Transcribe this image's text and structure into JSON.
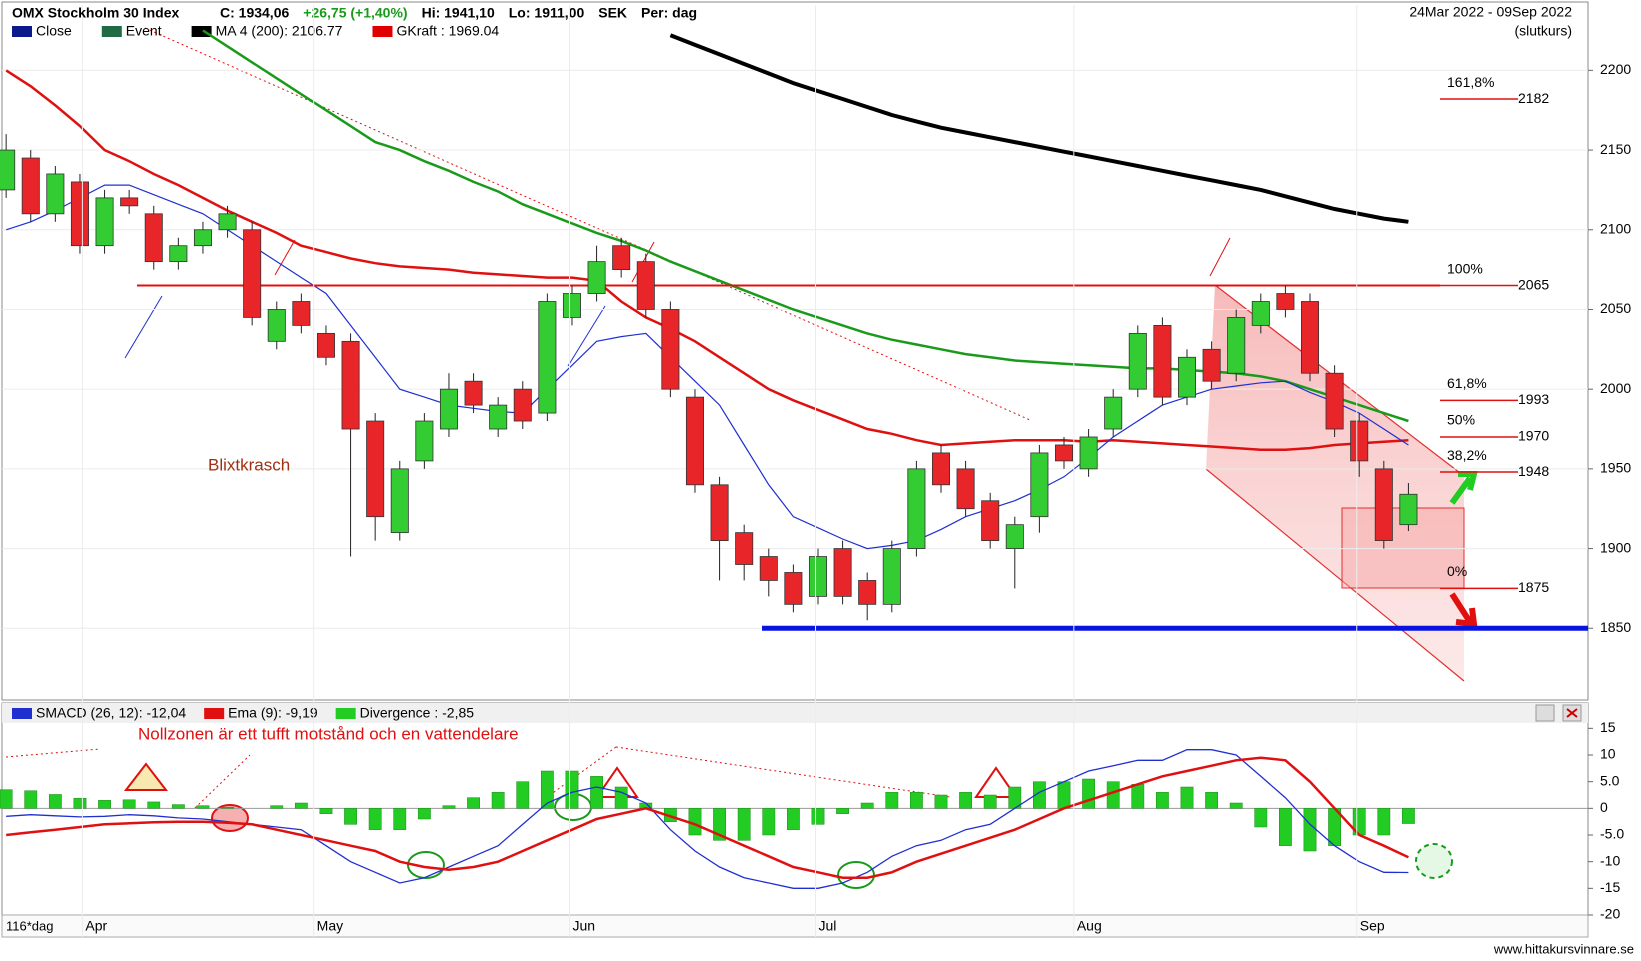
{
  "chart_data": [
    {
      "type": "candlestick",
      "title": "OMX Stockholm 30 Index",
      "stats": [
        "C: 1934,06",
        "+26,75 (+1,40%)",
        "Hi: 1941,10",
        "Lo: 1911,00",
        "SEK",
        "Per: dag"
      ],
      "stats_colors": [
        "#000000",
        "#1a9a1a",
        "#000000",
        "#000000",
        "#000000",
        "#000000"
      ],
      "date_range": "24Mar 2022 - 09Sep 2022",
      "price_basis": "(slutkurs)",
      "series": [
        {
          "name": "Close",
          "color": "#0b1a8a"
        },
        {
          "name": "Event",
          "color": "#1f6b45"
        },
        {
          "name": "MA 4 (200): 2106.77",
          "color": "#000000",
          "values": [
            null,
            null,
            null,
            null,
            null,
            null,
            null,
            null,
            null,
            null,
            null,
            null,
            null,
            null,
            null,
            null,
            null,
            null,
            null,
            null,
            null,
            null,
            null,
            null,
            null,
            null,
            null,
            2222,
            2216,
            2210,
            2204,
            2198,
            2192,
            2187,
            2182,
            2177,
            2172,
            2168,
            2164,
            2161,
            2158,
            2155,
            2152,
            2149,
            2146,
            2143,
            2140,
            2137,
            2134,
            2131,
            2128,
            2125,
            2121,
            2117,
            2113,
            2110,
            2107,
            2105
          ]
        },
        {
          "name": "GKraft : 1969.04",
          "color": "#e00000"
        }
      ],
      "lines": [
        {
          "color": "#1a9a1a",
          "values": [
            null,
            null,
            null,
            null,
            null,
            null,
            null,
            null,
            2225,
            2215,
            2205,
            2195,
            2185,
            2175,
            2165,
            2155,
            2150,
            2143,
            2137,
            2130,
            2124,
            2116,
            2110,
            2104,
            2098,
            2093,
            2087,
            2080,
            2074,
            2068,
            2062,
            2056,
            2050,
            2045,
            2040,
            2035,
            2031,
            2028,
            2025,
            2022,
            2020,
            2018,
            2017,
            2016,
            2015,
            2014,
            2013,
            2013,
            2012,
            2011,
            2010,
            2008,
            2005,
            2000,
            1995,
            1990,
            1985,
            1980
          ]
        },
        {
          "color": "#e01010",
          "values": [
            2200,
            2190,
            2178,
            2165,
            2150,
            2143,
            2135,
            2128,
            2120,
            2112,
            2105,
            2098,
            2090,
            2086,
            2082,
            2079,
            2077,
            2076,
            2075,
            2073,
            2072,
            2071,
            2070,
            2070,
            2068,
            2055,
            2045,
            2038,
            2030,
            2020,
            2010,
            2000,
            1993,
            1987,
            1981,
            1975,
            1972,
            1968,
            1965,
            1966,
            1967,
            1968,
            1968,
            1968,
            1967,
            1968,
            1967,
            1966,
            1965,
            1964,
            1963,
            1962,
            1962,
            1963,
            1965,
            1966,
            1967,
            1968
          ]
        },
        {
          "color": "#2030d0",
          "values": [
            2100,
            2105,
            2112,
            2120,
            2128,
            2128,
            2122,
            2116,
            2110,
            2100,
            2090,
            2080,
            2070,
            2060,
            2040,
            2020,
            2000,
            1995,
            1990,
            1988,
            1986,
            1985,
            2000,
            2015,
            2030,
            2033,
            2035,
            2020,
            2005,
            1990,
            1965,
            1940,
            1920,
            1913,
            1906,
            1900,
            1902,
            1905,
            1912,
            1920,
            1925,
            1930,
            1937,
            1945,
            1957,
            1970,
            1980,
            1990,
            1995,
            2000,
            2002,
            2004,
            2005,
            1998,
            1992,
            1985,
            1975,
            1965
          ]
        }
      ],
      "open": [
        2125,
        2145,
        2110,
        2130,
        2090,
        2120,
        2110,
        2080,
        2090,
        2100,
        2100,
        2030,
        2055,
        2035,
        2030,
        1980,
        1910,
        1955,
        1975,
        2005,
        1975,
        2000,
        1985,
        2045,
        2060,
        2090,
        2080,
        2050,
        1995,
        1940,
        1910,
        1895,
        1885,
        1870,
        1900,
        1880,
        1865,
        1900,
        1960,
        1950,
        1930,
        1900,
        1920,
        1965,
        1950,
        1975,
        2000,
        2040,
        1995,
        2025,
        2010,
        2040,
        2060,
        2055,
        2010,
        1980,
        1950,
        1915
      ],
      "high": [
        2160,
        2150,
        2140,
        2135,
        2125,
        2125,
        2115,
        2095,
        2105,
        2115,
        2105,
        2055,
        2060,
        2040,
        2035,
        1985,
        1955,
        1985,
        2010,
        2010,
        1995,
        2005,
        2060,
        2065,
        2090,
        2095,
        2085,
        2055,
        2000,
        1945,
        1915,
        1900,
        1890,
        1900,
        1905,
        1885,
        1905,
        1955,
        1965,
        1955,
        1935,
        1920,
        1965,
        1970,
        1975,
        2000,
        2040,
        2045,
        2025,
        2030,
        2050,
        2060,
        2065,
        2060,
        2015,
        1985,
        1955,
        1941.1
      ],
      "low": [
        2120,
        2105,
        2105,
        2085,
        2085,
        2110,
        2075,
        2075,
        2085,
        2095,
        2040,
        2025,
        2035,
        2015,
        1895,
        1905,
        1905,
        1950,
        1970,
        1985,
        1970,
        1975,
        1980,
        2040,
        2055,
        2070,
        2045,
        1995,
        1935,
        1880,
        1880,
        1870,
        1860,
        1865,
        1865,
        1855,
        1860,
        1895,
        1935,
        1920,
        1900,
        1875,
        1910,
        1950,
        1945,
        1970,
        1995,
        1990,
        1990,
        2000,
        2005,
        2035,
        2045,
        2005,
        1970,
        1945,
        1900,
        1911
      ],
      "close": [
        2150,
        2110,
        2135,
        2090,
        2120,
        2115,
        2080,
        2090,
        2100,
        2110,
        2045,
        2050,
        2040,
        2020,
        1975,
        1920,
        1950,
        1980,
        2000,
        1990,
        1990,
        1980,
        2055,
        2060,
        2080,
        2075,
        2050,
        2000,
        1940,
        1905,
        1890,
        1880,
        1865,
        1895,
        1870,
        1865,
        1900,
        1950,
        1940,
        1925,
        1905,
        1915,
        1960,
        1955,
        1970,
        1995,
        2035,
        1995,
        2020,
        2005,
        2045,
        2055,
        2050,
        2010,
        1975,
        1955,
        1905,
        1934.06
      ],
      "up_color": "#33cc33",
      "down_color": "#e8262a",
      "levels": [
        {
          "label": "161,8%",
          "value": 2182
        },
        {
          "label": "100%",
          "value": 2065
        },
        {
          "label": "61,8%",
          "value": 1993
        },
        {
          "label": "50%",
          "value": 1970
        },
        {
          "label": "38,2%",
          "value": 1948
        },
        {
          "label": "0%",
          "value": 1875
        }
      ],
      "support": 1850,
      "annotation": "Blixtkrasch",
      "ylim": [
        1805,
        2241
      ],
      "yticks": [
        1850,
        1900,
        1950,
        2000,
        2050,
        2100,
        2150,
        2200
      ],
      "xlim": [
        -0.25,
        64.3
      ],
      "grid": true
    },
    {
      "type": "macd",
      "series": [
        {
          "name": "SMACD (26, 12): -12,04",
          "color": "#2030d0",
          "values": [
            -1.5,
            -1.2,
            -1.4,
            -1.6,
            -1.5,
            -1.2,
            -1.4,
            -1.8,
            -2,
            -2.5,
            -3,
            -3.5,
            -4,
            -7,
            -10,
            -12,
            -14,
            -13,
            -11,
            -9,
            -7,
            -3,
            1,
            3,
            4,
            3,
            1,
            -4,
            -8,
            -11,
            -13,
            -14,
            -15,
            -15,
            -14,
            -12,
            -9,
            -7,
            -6,
            -4,
            -3,
            0,
            3,
            5,
            7,
            8,
            9,
            9,
            11,
            11,
            10,
            6,
            2,
            -3,
            -7,
            -10,
            -12,
            -12.04
          ]
        },
        {
          "name": "Ema (9): -9,19",
          "color": "#e01010",
          "values": [
            -5,
            -4.5,
            -4,
            -3.5,
            -3,
            -2.8,
            -2.6,
            -2.5,
            -2.5,
            -2.7,
            -3,
            -4,
            -5,
            -6,
            -7,
            -8,
            -10,
            -11,
            -11.5,
            -11,
            -10,
            -8,
            -6,
            -4,
            -2,
            -1,
            0,
            -1.5,
            -3,
            -5,
            -7,
            -9,
            -11,
            -12,
            -13,
            -13,
            -12,
            -10,
            -8.5,
            -7,
            -5.5,
            -4,
            -2,
            0,
            1.5,
            3,
            4.5,
            6,
            7,
            8,
            9,
            9.5,
            9,
            5,
            0,
            -5,
            -7,
            -9.19
          ]
        },
        {
          "name": "Divergence : -2,85",
          "color": "#22cc22",
          "values": [
            3.5,
            3.3,
            2.6,
            1.9,
            1.5,
            1.6,
            1.2,
            0.7,
            0.5,
            0.2,
            0,
            0.5,
            1,
            -1,
            -3,
            -4,
            -4,
            -2,
            0.5,
            2,
            3,
            5,
            7,
            7,
            6,
            4,
            1,
            -2.5,
            -5,
            -6,
            -6,
            -5,
            -4,
            -3,
            -1,
            1,
            3,
            3,
            2.5,
            3,
            2.5,
            4,
            5,
            5,
            5.5,
            5,
            4.5,
            3,
            4,
            3,
            1,
            -3.5,
            -7,
            -8,
            -7,
            -5,
            -5,
            -2.85
          ]
        }
      ],
      "annotation": "Nollzonen är ett tufft motstånd och en vattendelare",
      "ylim": [
        -20,
        16
      ],
      "yticks": [
        15,
        10,
        {
          "value": 5,
          "label": "5.0"
        },
        0,
        {
          "value": -5,
          "label": "-5.0"
        },
        -10,
        -15,
        -20
      ],
      "xlim": [
        -0.25,
        64.3
      ],
      "xticks": [
        {
          "value": 3.1,
          "label": "Apr"
        },
        {
          "value": 12.5,
          "label": "May"
        },
        {
          "value": 22.9,
          "label": "Jun"
        },
        {
          "value": 32.9,
          "label": "Jul"
        },
        {
          "value": 43.4,
          "label": "Aug"
        },
        {
          "value": 54.9,
          "label": "Sep"
        }
      ],
      "period_label": "116*dag",
      "watermark": "www.hittakursvinnare.se"
    }
  ]
}
